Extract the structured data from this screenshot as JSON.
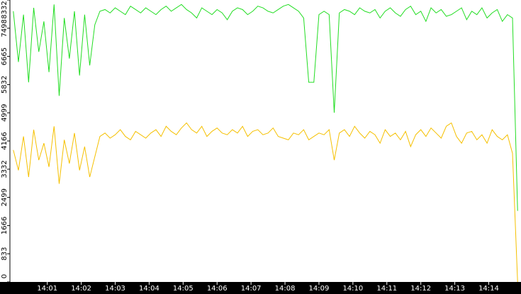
{
  "chart_data": {
    "type": "line",
    "x": [
      0,
      0.15,
      0.3,
      0.45,
      0.6,
      0.75,
      0.9,
      1.05,
      1.2,
      1.35,
      1.5,
      1.65,
      1.8,
      1.95,
      2.1,
      2.25,
      2.4,
      2.55,
      2.7,
      2.85,
      3,
      3.15,
      3.3,
      3.45,
      3.6,
      3.75,
      3.9,
      4.05,
      4.2,
      4.35,
      4.5,
      4.65,
      4.8,
      4.95,
      5.1,
      5.25,
      5.4,
      5.55,
      5.7,
      5.85,
      6,
      6.15,
      6.3,
      6.45,
      6.6,
      6.75,
      6.9,
      7.05,
      7.2,
      7.35,
      7.5,
      7.65,
      7.8,
      7.95,
      8.1,
      8.25,
      8.4,
      8.55,
      8.7,
      8.85,
      9,
      9.15,
      9.3,
      9.45,
      9.6,
      9.75,
      9.9,
      10.05,
      10.2,
      10.35,
      10.5,
      10.65,
      10.8,
      10.95,
      11.1,
      11.25,
      11.4,
      11.55,
      11.7,
      11.85,
      12,
      12.15,
      12.3,
      12.45,
      12.6,
      12.75,
      12.9,
      13.05,
      13.2,
      13.35,
      13.5,
      13.65,
      13.8,
      13.95,
      14.1,
      14.25,
      14.4,
      14.55,
      14.7,
      14.85
    ],
    "series": [
      {
        "color": "#22dd22",
        "values": [
          8000,
          6500,
          7900,
          5900,
          8100,
          6800,
          7700,
          6200,
          8200,
          5500,
          7800,
          6600,
          8000,
          6100,
          7900,
          6400,
          7600,
          8000,
          8050,
          7950,
          8100,
          8000,
          7900,
          8150,
          8050,
          7950,
          8100,
          8000,
          7900,
          8050,
          8150,
          8000,
          8100,
          8200,
          8050,
          7950,
          7800,
          8100,
          8000,
          7900,
          8050,
          7950,
          7750,
          8000,
          8100,
          8050,
          7900,
          8000,
          8150,
          8100,
          8000,
          7950,
          8050,
          8150,
          8200,
          8100,
          8000,
          7800,
          5900,
          5900,
          7900,
          8000,
          7900,
          5000,
          7950,
          8050,
          8000,
          7900,
          8100,
          8000,
          7950,
          8050,
          7800,
          8000,
          8100,
          7950,
          7850,
          8050,
          8150,
          7900,
          8000,
          7700,
          8100,
          7950,
          8050,
          7850,
          7900,
          8000,
          8100,
          7750,
          8000,
          7900,
          8100,
          7800,
          7950,
          8050,
          7700,
          7900,
          7800,
          2100
        ]
      },
      {
        "color": "#f5c000",
        "values": [
          3900,
          3300,
          4300,
          3100,
          4500,
          3600,
          4100,
          3400,
          4600,
          2900,
          4200,
          3500,
          4400,
          3300,
          4000,
          3100,
          3700,
          4300,
          4400,
          4250,
          4350,
          4500,
          4300,
          4200,
          4450,
          4350,
          4250,
          4400,
          4500,
          4300,
          4600,
          4450,
          4350,
          4550,
          4700,
          4500,
          4400,
          4600,
          4300,
          4450,
          4550,
          4400,
          4350,
          4500,
          4400,
          4600,
          4300,
          4450,
          4500,
          4350,
          4400,
          4550,
          4300,
          4250,
          4200,
          4400,
          4350,
          4500,
          4200,
          4300,
          4400,
          4350,
          4500,
          3600,
          4400,
          4500,
          4300,
          4600,
          4400,
          4250,
          4450,
          4350,
          4100,
          4500,
          4300,
          4400,
          4200,
          4450,
          4000,
          4350,
          4500,
          4300,
          4550,
          4400,
          4250,
          4600,
          4700,
          4300,
          4100,
          4400,
          4450,
          4200,
          4350,
          4100,
          4500,
          4300,
          4200,
          4350,
          3800,
          0
        ]
      }
    ],
    "xlim": [
      -0.1,
      14.95
    ],
    "xticks": [
      {
        "value": 1,
        "label": "14:01"
      },
      {
        "value": 2,
        "label": "14:02"
      },
      {
        "value": 3,
        "label": "14:03"
      },
      {
        "value": 4,
        "label": "14:04"
      },
      {
        "value": 5,
        "label": "14:05"
      },
      {
        "value": 6,
        "label": "14:06"
      },
      {
        "value": 7,
        "label": "14:07"
      },
      {
        "value": 8,
        "label": "14:08"
      },
      {
        "value": 9,
        "label": "14:09"
      },
      {
        "value": 10,
        "label": "14:10"
      },
      {
        "value": 11,
        "label": "14:11"
      },
      {
        "value": 12,
        "label": "14:12"
      },
      {
        "value": 13,
        "label": "14:13"
      },
      {
        "value": 14,
        "label": "14:14"
      }
    ],
    "ylim": [
      0,
      8332
    ],
    "yticks": [
      0,
      833,
      1666,
      2499,
      3332,
      4166,
      4999,
      5832,
      6665,
      7498,
      8332
    ]
  }
}
